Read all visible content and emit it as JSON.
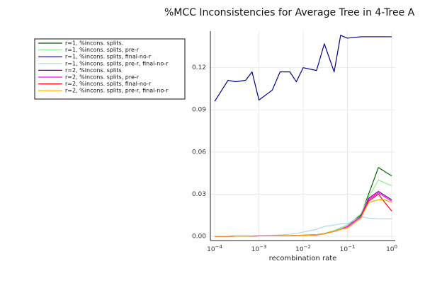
{
  "chart_data": {
    "type": "line",
    "title": "%MCC Inconsistencies for Average Tree in 4-Tree A",
    "xlabel": "recombination rate",
    "ylabel": "",
    "xscale": "log",
    "xlim": [
      8e-05,
      1.2
    ],
    "ylim": [
      -0.003,
      0.146
    ],
    "xticks": [
      {
        "value": 0.0001,
        "base": "10",
        "exp": "−4"
      },
      {
        "value": 0.001,
        "base": "10",
        "exp": "−3"
      },
      {
        "value": 0.01,
        "base": "10",
        "exp": "−2"
      },
      {
        "value": 0.1,
        "base": "10",
        "exp": "−1"
      },
      {
        "value": 1,
        "base": "10",
        "exp": "0"
      }
    ],
    "yticks": [
      {
        "value": 0.0,
        "label": "0.00"
      },
      {
        "value": 0.03,
        "label": "0.03"
      },
      {
        "value": 0.06,
        "label": "0.06"
      },
      {
        "value": 0.09,
        "label": "0.09"
      },
      {
        "value": 0.12,
        "label": "0.12"
      }
    ],
    "grid": true,
    "legend_position": "top-left",
    "x": [
      0.0001,
      0.0002,
      0.0003,
      0.0005,
      0.0007,
      0.001,
      0.002,
      0.003,
      0.005,
      0.007,
      0.01,
      0.02,
      0.03,
      0.05,
      0.07,
      0.1,
      0.2,
      0.3,
      0.5,
      0.7,
      1.0
    ],
    "series": [
      {
        "name": "r=1, %incons. splits.",
        "color": "#006400",
        "values": [
          0.0,
          0.0,
          0.0001,
          0.0001,
          0.0002,
          0.0003,
          0.0003,
          0.0004,
          0.0005,
          0.0006,
          0.0008,
          0.0012,
          0.002,
          0.004,
          0.006,
          0.008,
          0.015,
          0.03,
          0.049,
          0.046,
          0.043
        ]
      },
      {
        "name": "r=1, %incons. splits, pre-r",
        "color": "#90ee90",
        "values": [
          0.0,
          0.0,
          0.0001,
          0.0001,
          0.0002,
          0.0003,
          0.0003,
          0.0004,
          0.0005,
          0.0006,
          0.0008,
          0.0012,
          0.002,
          0.004,
          0.006,
          0.008,
          0.016,
          0.028,
          0.04,
          0.038,
          0.036
        ]
      },
      {
        "name": "r=1, %incons. splits, final-no-r",
        "color": "#00008b",
        "values": [
          0.096,
          0.111,
          0.11,
          0.111,
          0.117,
          0.097,
          0.104,
          0.117,
          0.117,
          0.11,
          0.12,
          0.118,
          0.137,
          0.117,
          0.143,
          0.141,
          0.142,
          0.142,
          0.142,
          0.142,
          0.142
        ]
      },
      {
        "name": "r=1, %incons. splits, pre-r, final-no-r",
        "color": "#add8e6",
        "values": [
          0.0,
          0.0,
          0.0001,
          0.0002,
          0.0003,
          0.0004,
          0.0007,
          0.001,
          0.0015,
          0.002,
          0.003,
          0.005,
          0.007,
          0.008,
          0.009,
          0.009,
          0.014,
          0.013,
          0.0125,
          0.0125,
          0.0125
        ]
      },
      {
        "name": "r=2, %incons. splits",
        "color": "#800080",
        "values": [
          0.0,
          0.0,
          0.0001,
          0.0001,
          0.0002,
          0.0003,
          0.0003,
          0.0004,
          0.0005,
          0.0006,
          0.0007,
          0.001,
          0.0018,
          0.0035,
          0.005,
          0.007,
          0.014,
          0.027,
          0.032,
          0.029,
          0.026
        ]
      },
      {
        "name": "r=2, %incons. splits, pre-r",
        "color": "#ff00ff",
        "values": [
          0.0,
          0.0,
          0.0001,
          0.0001,
          0.0002,
          0.0003,
          0.0003,
          0.0004,
          0.0005,
          0.0006,
          0.0007,
          0.001,
          0.0018,
          0.0035,
          0.005,
          0.007,
          0.014,
          0.026,
          0.031,
          0.028,
          0.025
        ]
      },
      {
        "name": "r=2, %incons. splits, final-no-r",
        "color": "#ff0000",
        "values": [
          0.0,
          0.0,
          0.0001,
          0.0001,
          0.0002,
          0.0003,
          0.0003,
          0.0004,
          0.0005,
          0.0006,
          0.0007,
          0.001,
          0.0018,
          0.0035,
          0.005,
          0.006,
          0.013,
          0.025,
          0.03,
          0.024,
          0.018
        ]
      },
      {
        "name": "r=2, %incons. splits, pre-r, final-no-r",
        "color": "#ffa500",
        "values": [
          0.0,
          0.0,
          0.0001,
          0.0001,
          0.0002,
          0.0003,
          0.0003,
          0.0004,
          0.0005,
          0.0006,
          0.0007,
          0.001,
          0.0018,
          0.0035,
          0.005,
          0.006,
          0.013,
          0.024,
          0.026,
          0.026,
          0.024
        ]
      }
    ]
  }
}
